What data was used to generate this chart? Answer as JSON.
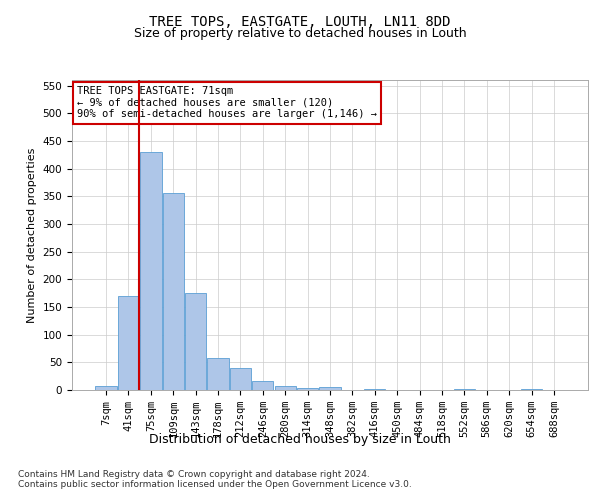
{
  "title": "TREE TOPS, EASTGATE, LOUTH, LN11 8DD",
  "subtitle": "Size of property relative to detached houses in Louth",
  "xlabel": "Distribution of detached houses by size in Louth",
  "ylabel": "Number of detached properties",
  "bar_labels": [
    "7sqm",
    "41sqm",
    "75sqm",
    "109sqm",
    "143sqm",
    "178sqm",
    "212sqm",
    "246sqm",
    "280sqm",
    "314sqm",
    "348sqm",
    "382sqm",
    "416sqm",
    "450sqm",
    "484sqm",
    "518sqm",
    "552sqm",
    "586sqm",
    "620sqm",
    "654sqm",
    "688sqm"
  ],
  "bar_values": [
    8,
    170,
    430,
    355,
    175,
    57,
    39,
    17,
    8,
    4,
    5,
    0,
    2,
    0,
    0,
    0,
    2,
    0,
    0,
    2,
    0
  ],
  "bar_color": "#aec6e8",
  "bar_edge_color": "#5a9fd4",
  "vline_x_index": 1,
  "vline_color": "#cc0000",
  "ylim": [
    0,
    560
  ],
  "yticks": [
    0,
    50,
    100,
    150,
    200,
    250,
    300,
    350,
    400,
    450,
    500,
    550
  ],
  "annotation_text": "TREE TOPS EASTGATE: 71sqm\n← 9% of detached houses are smaller (120)\n90% of semi-detached houses are larger (1,146) →",
  "annotation_box_color": "#ffffff",
  "annotation_border_color": "#cc0000",
  "footer_text": "Contains HM Land Registry data © Crown copyright and database right 2024.\nContains public sector information licensed under the Open Government Licence v3.0.",
  "bg_color": "#ffffff",
  "grid_color": "#cccccc",
  "title_fontsize": 10,
  "subtitle_fontsize": 9,
  "ylabel_fontsize": 8,
  "xlabel_fontsize": 9,
  "tick_fontsize": 7.5,
  "annotation_fontsize": 7.5,
  "footer_fontsize": 6.5
}
